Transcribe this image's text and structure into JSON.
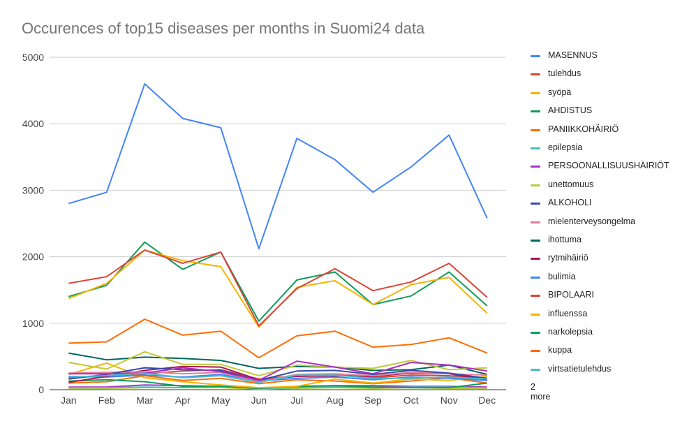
{
  "chart_data": {
    "type": "line",
    "title": "Occurences of top15 diseases per months in Suomi24 data",
    "xlabel": "",
    "ylabel": "",
    "categories": [
      "Jan",
      "Feb",
      "Mar",
      "Apr",
      "May",
      "Jun",
      "Jul",
      "Aug",
      "Sep",
      "Oct",
      "Nov",
      "Dec"
    ],
    "ylim": [
      0,
      5000
    ],
    "yticks": [
      "0",
      "1000",
      "2000",
      "3000",
      "4000",
      "5000"
    ],
    "grid": true,
    "legend_position": "right",
    "legend_more": "2 more",
    "series": [
      {
        "name": "MASENNUS",
        "color": "#4285f4",
        "values": [
          2800,
          2970,
          4600,
          4080,
          3940,
          2120,
          3780,
          3460,
          2970,
          3350,
          3830,
          2580
        ]
      },
      {
        "name": "tulehdus",
        "color": "#db4437",
        "values": [
          1600,
          1700,
          2100,
          1900,
          2070,
          960,
          1520,
          1820,
          1490,
          1620,
          1900,
          1390
        ]
      },
      {
        "name": "syöpä",
        "color": "#f4b400",
        "values": [
          1370,
          1600,
          2100,
          1940,
          1850,
          940,
          1540,
          1640,
          1280,
          1580,
          1690,
          1150
        ]
      },
      {
        "name": "AHDISTUS",
        "color": "#0f9d58",
        "values": [
          1400,
          1570,
          2220,
          1810,
          2070,
          1030,
          1650,
          1770,
          1280,
          1410,
          1770,
          1260
        ]
      },
      {
        "name": "PANIIKKOHÄIRIÖ",
        "color": "#ff6d00",
        "values": [
          700,
          720,
          1060,
          820,
          880,
          480,
          810,
          880,
          640,
          680,
          780,
          550
        ]
      },
      {
        "name": "epilepsia",
        "color": "#46bdc6",
        "values": [
          190,
          210,
          250,
          180,
          210,
          110,
          220,
          220,
          170,
          170,
          190,
          160
        ]
      },
      {
        "name": "PERSOONALLISUUSHÄIRIÖT",
        "color": "#ab30c4",
        "values": [
          240,
          240,
          250,
          330,
          270,
          140,
          430,
          340,
          240,
          410,
          370,
          280
        ]
      },
      {
        "name": "unettomuus",
        "color": "#c0ca33",
        "values": [
          410,
          310,
          570,
          380,
          380,
          210,
          370,
          340,
          320,
          440,
          300,
          330
        ]
      },
      {
        "name": "ALKOHOLI",
        "color": "#3949ab",
        "values": [
          160,
          230,
          330,
          300,
          290,
          140,
          280,
          290,
          230,
          290,
          250,
          170
        ]
      },
      {
        "name": "mielenterveysongelma",
        "color": "#e67c9e",
        "values": [
          250,
          260,
          270,
          240,
          260,
          120,
          230,
          240,
          210,
          260,
          240,
          220
        ]
      },
      {
        "name": "ihottuma",
        "color": "#00695c",
        "values": [
          550,
          450,
          490,
          470,
          440,
          320,
          350,
          340,
          290,
          300,
          370,
          230
        ]
      },
      {
        "name": "rytmihäiriö",
        "color": "#ad1457",
        "values": [
          110,
          200,
          290,
          350,
          340,
          150,
          200,
          210,
          200,
          250,
          240,
          150
        ]
      },
      {
        "name": "bulimia",
        "color": "#4285f4",
        "values": [
          200,
          190,
          220,
          190,
          230,
          130,
          170,
          190,
          150,
          190,
          170,
          140
        ]
      },
      {
        "name": "BIPOLAARI",
        "color": "#db4437",
        "values": [
          180,
          210,
          240,
          280,
          300,
          160,
          210,
          230,
          180,
          220,
          210,
          170
        ]
      },
      {
        "name": "influenssa",
        "color": "#f4b400",
        "values": [
          230,
          400,
          180,
          120,
          70,
          30,
          50,
          160,
          100,
          160,
          140,
          200
        ]
      },
      {
        "name": "narkolepsia",
        "color": "#0f9d58",
        "values": [
          130,
          150,
          120,
          50,
          50,
          20,
          50,
          60,
          40,
          30,
          30,
          100
        ]
      },
      {
        "name": "kuppa",
        "color": "#ff6d00",
        "values": [
          100,
          120,
          210,
          140,
          170,
          90,
          150,
          130,
          90,
          130,
          180,
          100
        ]
      },
      {
        "name": "virtsatietulehdus",
        "color": "#46bdc6",
        "values": [
          30,
          30,
          40,
          30,
          50,
          20,
          30,
          40,
          30,
          40,
          40,
          30
        ]
      },
      {
        "name": "",
        "color": "#ab30c4",
        "values": [
          40,
          40,
          70,
          60,
          50,
          20,
          50,
          60,
          60,
          50,
          50,
          40
        ]
      },
      {
        "name": "",
        "color": "#c0ca33",
        "values": [
          20,
          20,
          30,
          30,
          30,
          10,
          20,
          30,
          20,
          30,
          20,
          20
        ]
      }
    ]
  }
}
